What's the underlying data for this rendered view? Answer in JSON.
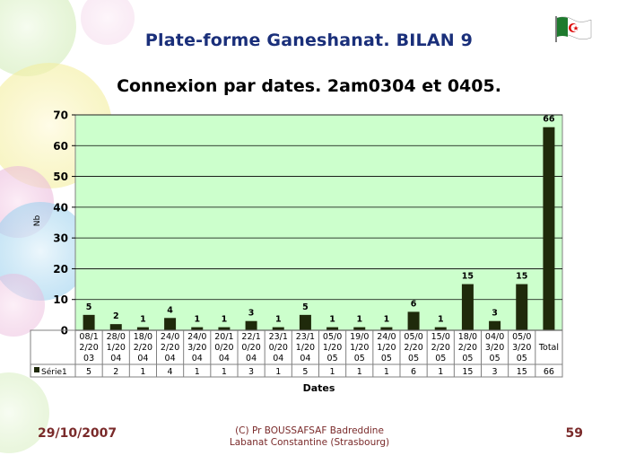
{
  "slide": {
    "title": "Plate-forme Ganeshanat. BILAN 9"
  },
  "footer": {
    "date": "29/10/2007",
    "credit_line1": "(C) Pr BOUSSAFSAF Badreddine",
    "credit_line2": "Labanat Constantine (Strasbourg)",
    "page": "59"
  },
  "colors": {
    "title": "#1a2f7a",
    "footer": "#7a2a2a",
    "plot_bg": "#ccffcc",
    "bar": "#1f2a0b"
  },
  "chart_data": {
    "type": "bar",
    "title": "Connexion par dates. 2am0304 et 0405.",
    "xlabel": "Dates",
    "ylabel": "Nb",
    "ylim": [
      0,
      70
    ],
    "yticks": [
      0,
      10,
      20,
      30,
      40,
      50,
      60,
      70
    ],
    "grid": true,
    "legend": "in-table",
    "categories": [
      [
        "08/1",
        "2/20",
        "03"
      ],
      [
        "28/0",
        "1/20",
        "04"
      ],
      [
        "18/0",
        "2/20",
        "04"
      ],
      [
        "24/0",
        "2/20",
        "04"
      ],
      [
        "24/0",
        "3/20",
        "04"
      ],
      [
        "20/1",
        "0/20",
        "04"
      ],
      [
        "22/1",
        "0/20",
        "04"
      ],
      [
        "23/1",
        "0/20",
        "04"
      ],
      [
        "23/1",
        "1/20",
        "04"
      ],
      [
        "05/0",
        "1/20",
        "05"
      ],
      [
        "19/0",
        "1/20",
        "05"
      ],
      [
        "24/0",
        "1/20",
        "05"
      ],
      [
        "05/0",
        "2/20",
        "05"
      ],
      [
        "15/0",
        "2/20",
        "05"
      ],
      [
        "18/0",
        "2/20",
        "05"
      ],
      [
        "04/0",
        "3/20",
        "05"
      ],
      [
        "05/0",
        "3/20",
        "05"
      ],
      [
        "Total"
      ]
    ],
    "series": [
      {
        "name": "Série1",
        "values": [
          5,
          2,
          1,
          4,
          1,
          1,
          3,
          1,
          5,
          1,
          1,
          1,
          6,
          1,
          15,
          3,
          15,
          66
        ]
      }
    ]
  }
}
